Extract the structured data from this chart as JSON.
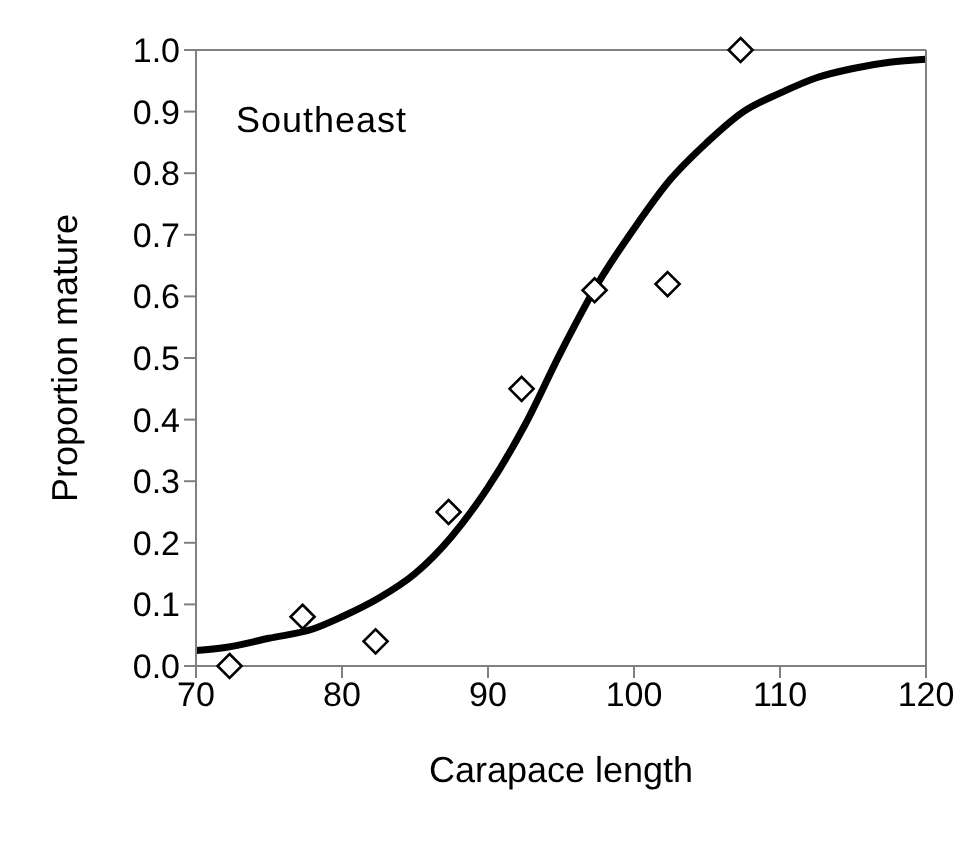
{
  "chart_data": {
    "type": "scatter",
    "xlabel": "Carapace length",
    "ylabel": "Proportion mature",
    "annotations": [
      "Southeast"
    ],
    "xlim": [
      70,
      120
    ],
    "xticks": [
      70,
      80,
      90,
      100,
      110,
      120
    ],
    "ylim": [
      0,
      1
    ],
    "yticks": [
      {
        "value": 0,
        "label": "0.0"
      },
      0.1,
      0.2,
      0.3,
      0.4,
      0.5,
      0.6,
      0.7,
      0.8,
      0.9,
      {
        "value": 1,
        "label": "1.0"
      }
    ],
    "grid": false,
    "series": [
      {
        "type": "line",
        "color": "#000000",
        "marker": "none",
        "line_style": "solid",
        "x": [
          70,
          72,
          75,
          78,
          80,
          82.5,
          85,
          87.5,
          90,
          92.5,
          95,
          97.5,
          100,
          102.5,
          105,
          107.5,
          110,
          112.5,
          115,
          117.5,
          120
        ],
        "values": [
          0.025,
          0.03,
          0.045,
          0.06,
          0.08,
          0.11,
          0.15,
          0.21,
          0.29,
          0.39,
          0.51,
          0.62,
          0.71,
          0.79,
          0.85,
          0.9,
          0.93,
          0.955,
          0.97,
          0.98,
          0.985
        ]
      },
      {
        "color": "#000000",
        "marker": "diamond",
        "x": [
          72.3,
          77.3,
          82.3,
          87.3,
          92.3,
          97.3,
          102.3,
          107.3
        ],
        "values": [
          0.0,
          0.08,
          0.04,
          0.25,
          0.45,
          0.61,
          0.62,
          1.0
        ]
      }
    ]
  }
}
